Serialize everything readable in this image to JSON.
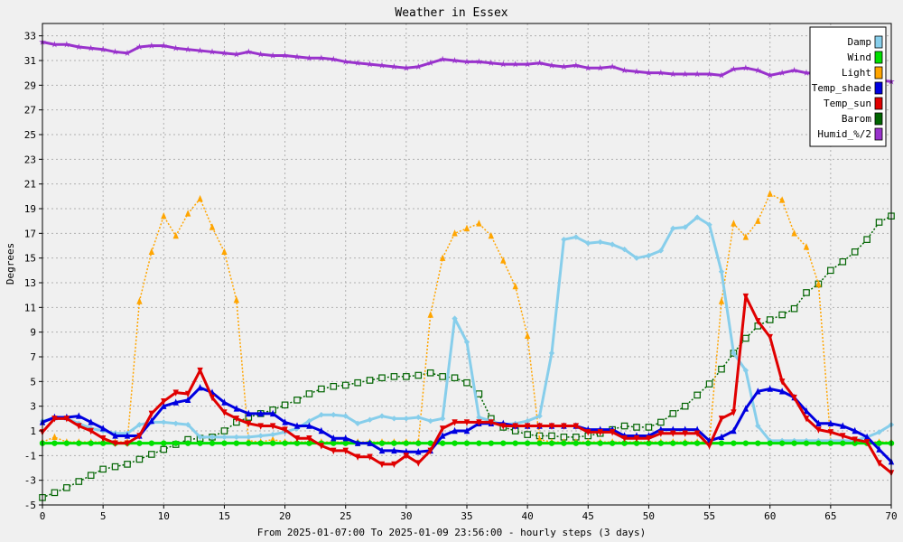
{
  "chart_data": {
    "type": "line",
    "title": "Weather in Essex",
    "xlabel": "From 2025-01-07:00 To 2025-01-09 23:56:00 - hourly steps (3 days)",
    "ylabel": "Degrees",
    "xlim": [
      0,
      70
    ],
    "ylim": [
      -5,
      34
    ],
    "x_ticks": [
      0,
      5,
      10,
      15,
      20,
      25,
      30,
      35,
      40,
      45,
      50,
      55,
      60,
      65,
      70
    ],
    "y_ticks": [
      -5,
      -3,
      -1,
      1,
      3,
      5,
      7,
      9,
      11,
      13,
      15,
      17,
      19,
      21,
      23,
      25,
      27,
      29,
      31,
      33
    ],
    "grid": true,
    "legend_position": "top-right",
    "series": [
      {
        "name": "Damp",
        "color": "#87ceeb",
        "style": "solid-thick",
        "marker": "diamond",
        "x": [
          0,
          1,
          2,
          3,
          4,
          5,
          6,
          7,
          8,
          9,
          10,
          11,
          12,
          13,
          14,
          15,
          16,
          17,
          18,
          19,
          20,
          21,
          22,
          23,
          24,
          25,
          26,
          27,
          28,
          29,
          30,
          31,
          32,
          33,
          34,
          35,
          36,
          37,
          38,
          39,
          40,
          41,
          42,
          43,
          44,
          45,
          46,
          47,
          48,
          49,
          50,
          51,
          52,
          53,
          54,
          55,
          56,
          57,
          58,
          59,
          60,
          61,
          62,
          63,
          64,
          65,
          66,
          67,
          68,
          69,
          70
        ],
        "y": [
          1.8,
          2.0,
          2.0,
          1.6,
          1.2,
          1.0,
          0.8,
          0.8,
          1.5,
          1.7,
          1.7,
          1.6,
          1.5,
          0.5,
          0.5,
          0.5,
          0.5,
          0.5,
          0.6,
          0.7,
          0.9,
          1.2,
          1.8,
          2.3,
          2.3,
          2.2,
          1.6,
          1.9,
          2.2,
          2.0,
          2.0,
          2.1,
          1.8,
          2.0,
          10.1,
          8.2,
          2.1,
          1.8,
          1.5,
          1.6,
          1.8,
          2.2,
          7.3,
          16.5,
          16.7,
          16.2,
          16.3,
          16.1,
          15.7,
          15.0,
          15.2,
          15.6,
          17.4,
          17.5,
          18.3,
          17.7,
          13.9,
          7.3,
          5.9,
          1.4,
          0.2,
          0.2,
          0.2,
          0.2,
          0.2,
          0.2,
          0.2,
          0.2,
          0.5,
          0.9,
          1.5
        ]
      },
      {
        "name": "Wind",
        "color": "#00e000",
        "style": "solid-thick",
        "marker": "circle",
        "x": [
          0,
          1,
          2,
          3,
          4,
          5,
          6,
          7,
          8,
          9,
          10,
          11,
          12,
          13,
          14,
          15,
          16,
          17,
          18,
          19,
          20,
          21,
          22,
          23,
          24,
          25,
          26,
          27,
          28,
          29,
          30,
          31,
          32,
          33,
          34,
          35,
          36,
          37,
          38,
          39,
          40,
          41,
          42,
          43,
          44,
          45,
          46,
          47,
          48,
          49,
          50,
          51,
          52,
          53,
          54,
          55,
          56,
          57,
          58,
          59,
          60,
          61,
          62,
          63,
          64,
          65,
          66,
          67,
          68,
          69,
          70
        ],
        "y": [
          0,
          0,
          0,
          0,
          0,
          0,
          0,
          0,
          0,
          0,
          0,
          0,
          0,
          0,
          0,
          0,
          0,
          0,
          0,
          0,
          0,
          0,
          0,
          0,
          0,
          0,
          0,
          0,
          0,
          0,
          0,
          0,
          0,
          0,
          0,
          0,
          0,
          0,
          0,
          0,
          0,
          0,
          0,
          0,
          0,
          0,
          0,
          0,
          0,
          0,
          0,
          0,
          0,
          0,
          0,
          0,
          0,
          0,
          0,
          0,
          0,
          0,
          0,
          0,
          0,
          0,
          0,
          0,
          0,
          0,
          0
        ]
      },
      {
        "name": "Light",
        "color": "#ffa500",
        "style": "dotted",
        "marker": "triangle",
        "x": [
          0,
          1,
          2,
          3,
          4,
          5,
          6,
          7,
          8,
          9,
          10,
          11,
          12,
          13,
          14,
          15,
          16,
          17,
          18,
          19,
          20,
          21,
          22,
          23,
          24,
          25,
          26,
          27,
          28,
          29,
          30,
          31,
          32,
          33,
          34,
          35,
          36,
          37,
          38,
          39,
          40,
          41,
          42,
          43,
          44,
          45,
          46,
          47,
          48,
          49,
          50,
          51,
          52,
          53,
          54,
          55,
          56,
          57,
          58,
          59,
          60,
          61,
          62,
          63,
          64,
          65,
          66,
          67,
          68,
          69,
          70
        ],
        "y": [
          0.1,
          0.5,
          0.1,
          0.1,
          0.1,
          0.1,
          0.1,
          0.1,
          11.5,
          15.5,
          18.4,
          16.8,
          18.6,
          19.8,
          17.5,
          15.5,
          11.6,
          0.2,
          0.1,
          0.3,
          0.1,
          0.1,
          0.1,
          0.1,
          0.1,
          0.1,
          0.1,
          0.1,
          0.1,
          0.1,
          0.1,
          0.1,
          10.4,
          15.0,
          17.0,
          17.4,
          17.8,
          16.8,
          14.8,
          12.7,
          8.7,
          0.3,
          0.1,
          0.1,
          0.1,
          0.1,
          0.1,
          0.1,
          0.1,
          0.1,
          0.1,
          0.1,
          0.1,
          0.1,
          0.1,
          0.1,
          11.5,
          17.8,
          16.7,
          18.0,
          20.2,
          19.7,
          17.0,
          15.9,
          12.9,
          0.2,
          0.1,
          0.1,
          0.1,
          0.1,
          0.1
        ]
      },
      {
        "name": "Temp_shade",
        "color": "#0000e0",
        "style": "solid-thick",
        "marker": "triangle",
        "x": [
          0,
          1,
          2,
          3,
          4,
          5,
          6,
          7,
          8,
          9,
          10,
          11,
          12,
          13,
          14,
          15,
          16,
          17,
          18,
          19,
          20,
          21,
          22,
          23,
          24,
          25,
          26,
          27,
          28,
          29,
          30,
          31,
          32,
          33,
          34,
          35,
          36,
          37,
          38,
          39,
          40,
          41,
          42,
          43,
          44,
          45,
          46,
          47,
          48,
          49,
          50,
          51,
          52,
          53,
          54,
          55,
          56,
          57,
          58,
          59,
          60,
          61,
          62,
          63,
          64,
          65,
          66,
          67,
          68,
          69,
          70
        ],
        "y": [
          1.7,
          2.1,
          2.1,
          2.2,
          1.7,
          1.2,
          0.6,
          0.6,
          0.6,
          1.8,
          3.0,
          3.3,
          3.5,
          4.5,
          4.1,
          3.3,
          2.8,
          2.4,
          2.4,
          2.4,
          1.7,
          1.4,
          1.4,
          1.0,
          0.4,
          0.4,
          0.0,
          0.0,
          -0.6,
          -0.6,
          -0.7,
          -0.7,
          -0.6,
          0.6,
          1.0,
          1.0,
          1.6,
          1.6,
          1.6,
          1.4,
          1.4,
          1.4,
          1.4,
          1.4,
          1.4,
          1.1,
          1.1,
          1.1,
          0.6,
          0.6,
          0.6,
          1.1,
          1.1,
          1.1,
          1.1,
          0.2,
          0.5,
          1.0,
          2.8,
          4.2,
          4.4,
          4.2,
          3.7,
          2.6,
          1.6,
          1.6,
          1.4,
          1.0,
          0.5,
          -0.5,
          -1.5
        ]
      },
      {
        "name": "Temp_sun",
        "color": "#e00000",
        "style": "solid-thick",
        "marker": "triangle-down",
        "x": [
          0,
          1,
          2,
          3,
          4,
          5,
          6,
          7,
          8,
          9,
          10,
          11,
          12,
          13,
          14,
          15,
          16,
          17,
          18,
          19,
          20,
          21,
          22,
          23,
          24,
          25,
          26,
          27,
          28,
          29,
          30,
          31,
          32,
          33,
          34,
          35,
          36,
          37,
          38,
          39,
          40,
          41,
          42,
          43,
          44,
          45,
          46,
          47,
          48,
          49,
          50,
          51,
          52,
          53,
          54,
          55,
          56,
          57,
          58,
          59,
          60,
          61,
          62,
          63,
          64,
          65,
          66,
          67,
          68,
          69,
          70
        ],
        "y": [
          0.9,
          2.0,
          2.0,
          1.4,
          1.0,
          0.4,
          0.0,
          0.0,
          0.6,
          2.4,
          3.4,
          4.1,
          4.0,
          5.9,
          3.7,
          2.5,
          2.0,
          1.6,
          1.4,
          1.4,
          1.1,
          0.4,
          0.4,
          -0.2,
          -0.6,
          -0.6,
          -1.1,
          -1.1,
          -1.7,
          -1.7,
          -1.0,
          -1.6,
          -0.6,
          1.2,
          1.7,
          1.7,
          1.7,
          1.7,
          1.4,
          1.4,
          1.4,
          1.4,
          1.4,
          1.4,
          1.4,
          0.9,
          0.9,
          0.9,
          0.4,
          0.4,
          0.4,
          0.8,
          0.8,
          0.8,
          0.8,
          -0.2,
          2.0,
          2.5,
          11.9,
          9.9,
          8.6,
          5.0,
          3.7,
          2.0,
          1.1,
          0.9,
          0.6,
          0.3,
          0.1,
          -1.6,
          -2.4
        ]
      },
      {
        "name": "Barom",
        "color": "#006400",
        "style": "dotted",
        "marker": "square",
        "x": [
          0,
          1,
          2,
          3,
          4,
          5,
          6,
          7,
          8,
          9,
          10,
          11,
          12,
          13,
          14,
          15,
          16,
          17,
          18,
          19,
          20,
          21,
          22,
          23,
          24,
          25,
          26,
          27,
          28,
          29,
          30,
          31,
          32,
          33,
          34,
          35,
          36,
          37,
          38,
          39,
          40,
          41,
          42,
          43,
          44,
          45,
          46,
          47,
          48,
          49,
          50,
          51,
          52,
          53,
          54,
          55,
          56,
          57,
          58,
          59,
          60,
          61,
          62,
          63,
          64,
          65,
          66,
          67,
          68,
          69,
          70
        ],
        "y": [
          -4.4,
          -4.0,
          -3.6,
          -3.1,
          -2.6,
          -2.1,
          -1.9,
          -1.7,
          -1.3,
          -0.9,
          -0.5,
          -0.1,
          0.3,
          0.4,
          0.5,
          1.0,
          1.7,
          2.1,
          2.4,
          2.7,
          3.1,
          3.5,
          4.0,
          4.4,
          4.6,
          4.7,
          4.9,
          5.1,
          5.3,
          5.4,
          5.4,
          5.5,
          5.7,
          5.4,
          5.3,
          4.9,
          4.0,
          2.0,
          1.3,
          1.0,
          0.7,
          0.6,
          0.6,
          0.5,
          0.5,
          0.6,
          0.8,
          1.1,
          1.4,
          1.3,
          1.3,
          1.7,
          2.4,
          3.0,
          3.9,
          4.8,
          6.0,
          7.3,
          8.5,
          9.5,
          10.0,
          10.4,
          10.9,
          12.2,
          12.9,
          14.0,
          14.7,
          15.5,
          16.5,
          17.9,
          18.4
        ]
      },
      {
        "name": "Humid_%/2",
        "color": "#9932cc",
        "style": "solid-thick",
        "marker": "star",
        "x": [
          0,
          1,
          2,
          3,
          4,
          5,
          6,
          7,
          8,
          9,
          10,
          11,
          12,
          13,
          14,
          15,
          16,
          17,
          18,
          19,
          20,
          21,
          22,
          23,
          24,
          25,
          26,
          27,
          28,
          29,
          30,
          31,
          32,
          33,
          34,
          35,
          36,
          37,
          38,
          39,
          40,
          41,
          42,
          43,
          44,
          45,
          46,
          47,
          48,
          49,
          50,
          51,
          52,
          53,
          54,
          55,
          56,
          57,
          58,
          59,
          60,
          61,
          62,
          63,
          64,
          65,
          66,
          67,
          68,
          69,
          70
        ],
        "y": [
          32.5,
          32.3,
          32.3,
          32.1,
          32.0,
          31.9,
          31.7,
          31.6,
          32.1,
          32.2,
          32.2,
          32.0,
          31.9,
          31.8,
          31.7,
          31.6,
          31.5,
          31.7,
          31.5,
          31.4,
          31.4,
          31.3,
          31.2,
          31.2,
          31.1,
          30.9,
          30.8,
          30.7,
          30.6,
          30.5,
          30.4,
          30.5,
          30.8,
          31.1,
          31.0,
          30.9,
          30.9,
          30.8,
          30.7,
          30.7,
          30.7,
          30.8,
          30.6,
          30.5,
          30.6,
          30.4,
          30.4,
          30.5,
          30.2,
          30.1,
          30.0,
          30.0,
          29.9,
          29.9,
          29.9,
          29.9,
          29.8,
          30.3,
          30.4,
          30.2,
          29.8,
          30.0,
          30.2,
          30.0,
          29.9,
          29.8,
          29.7,
          29.6,
          29.5,
          29.4,
          29.3
        ]
      }
    ]
  }
}
